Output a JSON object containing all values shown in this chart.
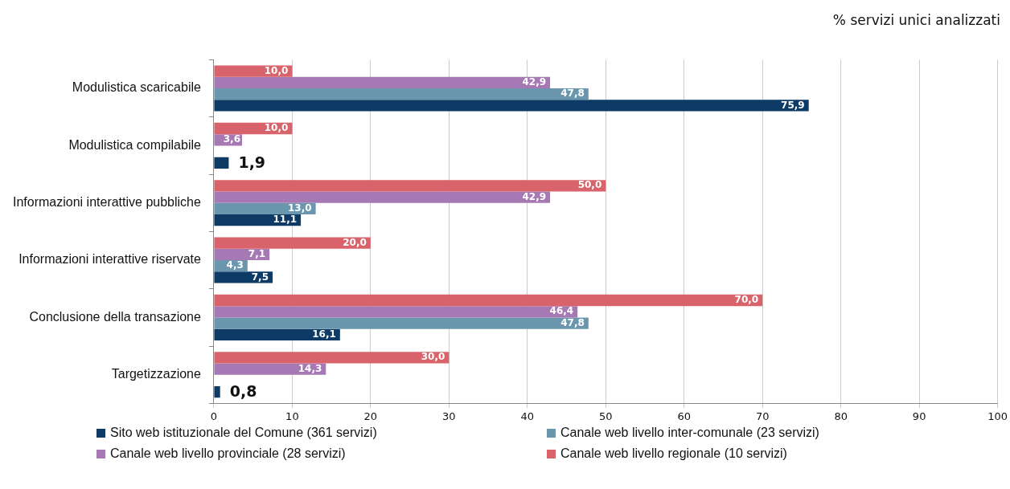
{
  "chart_data": {
    "type": "bar",
    "orientation": "horizontal",
    "title": "% servizi unici analizzati",
    "categories": [
      "Modulistica scaricabile",
      "Modulistica compilabile",
      "Informazioni interattive pubbliche",
      "Informazioni interattive riservate",
      "Conclusione della transazione",
      "Targetizzazione"
    ],
    "series": [
      {
        "name": "Sito web istituzionale del Comune (361 servizi)",
        "color": "#0e3a66",
        "values": [
          75.9,
          1.9,
          11.1,
          7.5,
          16.1,
          0.8
        ],
        "value_labels": [
          "75,9",
          "1,9",
          "11,1",
          "7,5",
          "16,1",
          "0,8"
        ]
      },
      {
        "name": "Canale web livello inter-comunale (23 servizi)",
        "color": "#6a97ad",
        "values": [
          47.8,
          null,
          13.0,
          4.3,
          47.8,
          null
        ],
        "value_labels": [
          "47,8",
          null,
          "13,0",
          "4,3",
          "47,8",
          null
        ]
      },
      {
        "name": "Canale web livello provinciale (28 servizi)",
        "color": "#a679b4",
        "values": [
          42.9,
          3.6,
          42.9,
          7.1,
          46.4,
          14.3
        ],
        "value_labels": [
          "42,9",
          "3,6",
          "42,9",
          "7,1",
          "46,4",
          "14,3"
        ]
      },
      {
        "name": "Canale web livello regionale (10 servizi)",
        "color": "#d9636b",
        "values": [
          10.0,
          10.0,
          50.0,
          20.0,
          70.0,
          30.0
        ],
        "value_labels": [
          "10,0",
          "10,0",
          "50,0",
          "20,0",
          "70,0",
          "30,0"
        ]
      }
    ],
    "xlim": [
      0,
      100
    ],
    "xticks": [
      0,
      10,
      20,
      30,
      40,
      50,
      60,
      70,
      80,
      90,
      100
    ],
    "grid": "x",
    "legend": "bottom"
  }
}
